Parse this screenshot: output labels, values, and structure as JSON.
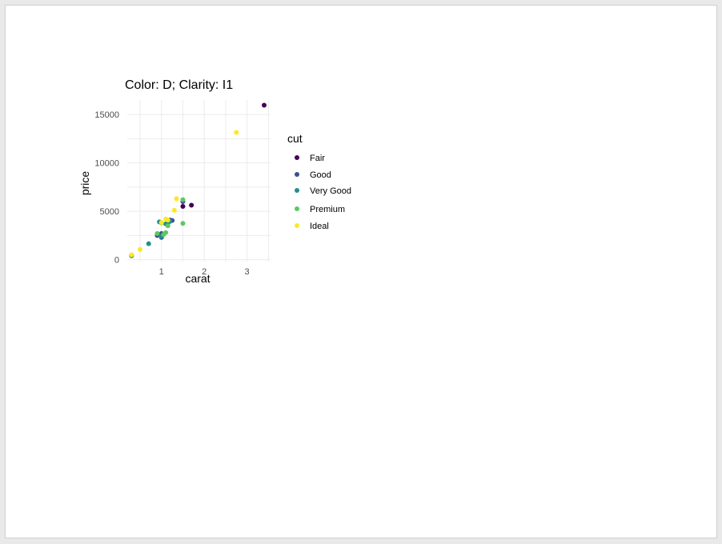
{
  "chart_data": {
    "type": "scatter",
    "title": "Color: D; Clarity: I1",
    "xlabel": "carat",
    "ylabel": "price",
    "xlim": [
      0.2,
      3.55
    ],
    "ylim": [
      -200,
      16500
    ],
    "x_ticks": [
      1,
      2,
      3
    ],
    "y_ticks": [
      0,
      5000,
      10000,
      15000
    ],
    "grid": true,
    "legend": {
      "title": "cut",
      "placement": "right"
    },
    "series": [
      {
        "name": "Fair",
        "color": "#440154",
        "points": [
          [
            3.4,
            15960
          ],
          [
            1.5,
            5500
          ],
          [
            1.7,
            5630
          ],
          [
            0.3,
            440
          ]
        ]
      },
      {
        "name": "Good",
        "color": "#3b528b",
        "points": [
          [
            1.5,
            6000
          ],
          [
            1.0,
            2300
          ],
          [
            1.0,
            2700
          ],
          [
            1.2,
            4100
          ],
          [
            1.25,
            4050
          ],
          [
            0.9,
            2500
          ]
        ]
      },
      {
        "name": "Very Good",
        "color": "#21908c",
        "points": [
          [
            0.7,
            1650
          ],
          [
            1.0,
            2400
          ],
          [
            1.1,
            3700
          ],
          [
            1.15,
            3800
          ],
          [
            0.95,
            3900
          ],
          [
            1.2,
            3950
          ],
          [
            0.3,
            400
          ]
        ]
      },
      {
        "name": "Premium",
        "color": "#5dc863",
        "points": [
          [
            1.5,
            6200
          ],
          [
            1.5,
            3750
          ],
          [
            1.1,
            2800
          ],
          [
            1.05,
            2600
          ],
          [
            0.9,
            2700
          ],
          [
            1.0,
            3800
          ],
          [
            1.15,
            3500
          ]
        ]
      },
      {
        "name": "Ideal",
        "color": "#fde725",
        "points": [
          [
            2.75,
            13150
          ],
          [
            1.35,
            6300
          ],
          [
            1.3,
            5100
          ],
          [
            1.15,
            4100
          ],
          [
            1.1,
            4200
          ],
          [
            0.5,
            1050
          ],
          [
            0.3,
            500
          ],
          [
            1.0,
            3850
          ]
        ]
      }
    ]
  }
}
